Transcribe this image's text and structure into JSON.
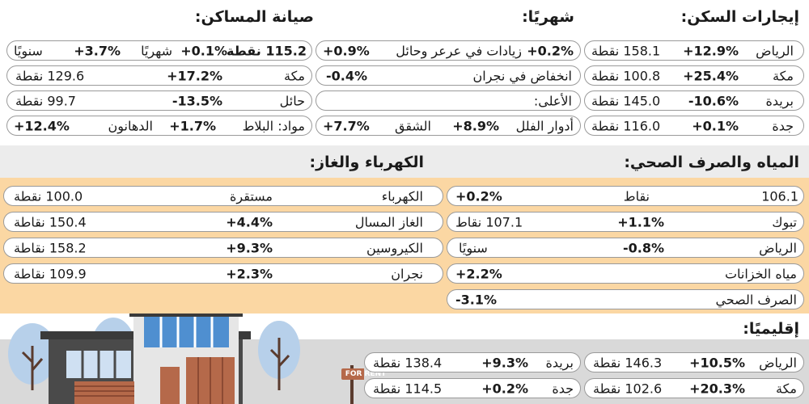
{
  "titles": {
    "rent": "إيجارات السكن:",
    "monthly": "شهريًا:",
    "maintenance": "صيانة المساكن:",
    "water": "المياه والصرف الصحي:",
    "elec": "الكهرباء والغاز:",
    "regional": "إقليميًا:"
  },
  "rent": [
    {
      "city": "الرياض",
      "pct": "+12.9%",
      "val": "158.1 نقطة"
    },
    {
      "city": "مكة",
      "pct": "+25.4%",
      "val": "100.8 نقطة"
    },
    {
      "city": "بريدة",
      "pct": "-10.6%",
      "val": "145.0 نقطة"
    },
    {
      "city": "جدة",
      "pct": "+0.1%",
      "val": "116.0 نقطة"
    }
  ],
  "monthly": {
    "r1_pct": "+0.2%",
    "r1_text": "زيادات في عرعر وحائل",
    "r1_pct2": "+0.9%",
    "r2_text": "انخفاض في نجران",
    "r2_pct": "-0.4%",
    "r3_text": "الأعلى:",
    "r4_a": "أدوار الفلل",
    "r4_a_pct": "+8.9%",
    "r4_b": "الشقق",
    "r4_b_pct": "+7.7%"
  },
  "maintenance": {
    "r1_val": "115.2 نقطة",
    "r1_m_label": "شهريًا",
    "r1_m_pct": "+0.1%",
    "r1_y_label": "سنويًا",
    "r1_y_pct": "+3.7%",
    "r2_label": "مكة",
    "r2_pct": "+17.2%",
    "r2_val": "129.6 نقطة",
    "r3_label": "حائل",
    "r3_pct": "-13.5%",
    "r3_val": "99.7 نقطة",
    "r4_label": "مواد: البلاط",
    "r4_pct": "+1.7%",
    "r4_b": "الدهانون",
    "r4_b_pct": "+12.4%"
  },
  "water": {
    "r1_val": "106.1",
    "r1_label": "نقاط",
    "r1_pct": "+0.2%",
    "r2_label": "تبوك",
    "r2_pct": "+1.1%",
    "r2_val": "107.1 نقاط",
    "r3_label": "الرياض",
    "r3_pct": "-0.8%",
    "r3_note": "سنويًا",
    "r4_label": "مياه الخزانات",
    "r4_pct": "+2.2%",
    "r5_label": "الصرف الصحي",
    "r5_pct": "-3.1%"
  },
  "elec": [
    {
      "label": "الكهرباء",
      "pct": "مستقرة",
      "val": "100.0 نقطة"
    },
    {
      "label": "الغاز المسال",
      "pct": "+4.4%",
      "val": "150.4 نقاطة"
    },
    {
      "label": "الكيروسين",
      "pct": "+9.3%",
      "val": "158.2 نقاطة"
    },
    {
      "label": "نجران",
      "pct": "+2.3%",
      "val": "109.9 نقاطة"
    }
  ],
  "regional": {
    "a_city": "الرياض",
    "a_pct": "+10.5%",
    "a_val": "146.3 نقطة",
    "b_city": "بريدة",
    "b_pct": "+9.3%",
    "b_val": "138.4 نقطة",
    "c_city": "مكة",
    "c_pct": "+20.3%",
    "c_val": "102.6 نقطة",
    "d_city": "جدة",
    "d_pct": "+0.2%",
    "d_val": "114.5 نقطة"
  },
  "sign": "FOR RENT",
  "colors": {
    "yellow": "#fbd7a3",
    "grey": "#ececec",
    "sky": "#c9dcef",
    "house": "#4a4a4a",
    "door": "#b5694a"
  }
}
